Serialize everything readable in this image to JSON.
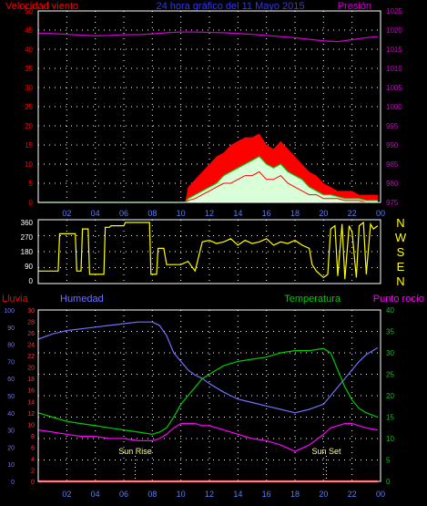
{
  "header": {
    "wind_label": "Velocidad viento",
    "title": "24 hora gráfico del 11 Mayo 2015",
    "pressure_label": "Presión"
  },
  "colors": {
    "wind": "#ff0000",
    "gust_fill": "#ff0000",
    "wind_avg": "#00cc00",
    "wind_fill": "#d8ffd8",
    "pressure": "#cc00cc",
    "direction": "#ffff00",
    "humidity": "#7070ff",
    "temperature": "#00cc00",
    "dewpoint": "#ff00ff",
    "rain": "#ff0000",
    "grid": "#ffffff",
    "frame": "#ffffff",
    "title": "#3333ff",
    "tick_x": "#5a7dff"
  },
  "compass": [
    "N",
    "W",
    "S",
    "E",
    "N"
  ],
  "sun": {
    "rise_label": "Sun Rise",
    "rise_hour": 6.8,
    "set_label": "Sun Set",
    "set_hour": 20.2
  },
  "chart_data": [
    {
      "type": "line",
      "name": "wind-pressure",
      "x_ticks": [
        "02",
        "04",
        "06",
        "08",
        "10",
        "12",
        "14",
        "16",
        "18",
        "20",
        "22",
        "00"
      ],
      "xlim": [
        0,
        24
      ],
      "y_left_ticks": [
        "0",
        "5",
        "10",
        "15",
        "20",
        "25",
        "30",
        "35",
        "40",
        "45",
        "50"
      ],
      "ylim_left": [
        0,
        50
      ],
      "y_right_ticks": [
        "975",
        "980",
        "985",
        "990",
        "995",
        "1000",
        "1005",
        "1010",
        "1015",
        "1020",
        "1025"
      ],
      "ylim_right": [
        975,
        1025
      ],
      "grid": true,
      "series": [
        {
          "key": "pressure",
          "axis": "right",
          "x": [
            0,
            1,
            2,
            3,
            4,
            5,
            6,
            7,
            8,
            9,
            10,
            11,
            12,
            13,
            14,
            15,
            16,
            17,
            18,
            19,
            20,
            21,
            22,
            23,
            23.8
          ],
          "values": [
            1019.2,
            1019.1,
            1018.9,
            1018.7,
            1018.5,
            1018.6,
            1018.8,
            1018.8,
            1019.0,
            1019.3,
            1019.5,
            1019.5,
            1019.4,
            1019.3,
            1019.1,
            1018.9,
            1018.6,
            1018.3,
            1018.0,
            1017.6,
            1017.2,
            1017.0,
            1017.5,
            1018.0,
            1018.3
          ]
        },
        {
          "key": "gust",
          "axis": "left",
          "x": [
            0,
            10.3,
            10.5,
            11,
            11.5,
            12,
            12.5,
            13,
            13.5,
            14,
            14.5,
            15,
            15.5,
            16,
            16.5,
            17,
            17.5,
            18,
            18.5,
            19,
            19.5,
            20,
            20.5,
            21,
            21.5,
            22,
            22.5,
            23,
            23.8
          ],
          "values": [
            0,
            0,
            4,
            6,
            8,
            10,
            12,
            13,
            15,
            16,
            17,
            17,
            18,
            15,
            14,
            16,
            14,
            12,
            10,
            8,
            7,
            5,
            4,
            3,
            3,
            3,
            2,
            2,
            2
          ]
        },
        {
          "key": "wind_avg",
          "axis": "left",
          "x": [
            0,
            10.3,
            10.5,
            11,
            11.5,
            12,
            12.5,
            13,
            13.5,
            14,
            14.5,
            15,
            15.5,
            16,
            16.5,
            17,
            17.5,
            18,
            18.5,
            19,
            19.5,
            20,
            20.5,
            21,
            21.5,
            22,
            22.5,
            23,
            23.8
          ],
          "values": [
            0,
            0,
            1,
            2,
            3,
            4,
            5,
            7,
            8,
            9,
            10,
            11,
            12,
            10,
            9,
            10,
            8,
            7,
            6,
            4,
            3,
            2,
            2,
            1.5,
            1,
            1,
            1,
            0.5,
            0.5
          ]
        },
        {
          "key": "wind",
          "axis": "left",
          "x": [
            0,
            10.3,
            10.5,
            11,
            11.5,
            12,
            12.5,
            13,
            13.5,
            14,
            14.5,
            15,
            15.5,
            16,
            16.5,
            17,
            17.5,
            18,
            18.5,
            19,
            19.5,
            20,
            20.5,
            21,
            21.5,
            22,
            22.5,
            23,
            23.8
          ],
          "values": [
            0,
            0,
            0.5,
            1,
            2,
            3,
            4,
            5,
            5,
            6,
            7,
            7,
            8,
            6,
            6,
            7,
            5,
            4,
            3,
            2,
            2,
            1,
            1,
            1,
            0.5,
            0.5,
            0.5,
            0,
            0
          ]
        }
      ]
    },
    {
      "type": "line",
      "name": "wind-direction",
      "x_ticks": [],
      "xlim": [
        0,
        24
      ],
      "y_left_ticks": [
        "0",
        "90",
        "180",
        "270",
        "360"
      ],
      "ylim_left": [
        0,
        360
      ],
      "grid": true,
      "series": [
        {
          "key": "direction",
          "axis": "left",
          "x": [
            0,
            1.4,
            1.5,
            2.6,
            2.7,
            3.0,
            3.1,
            3.5,
            3.6,
            4.2,
            4.3,
            4.6,
            4.7,
            5.0,
            5.1,
            6.0,
            6.1,
            7.8,
            7.9,
            8.3,
            8.4,
            8.8,
            9.0,
            9.3,
            9.5,
            10,
            10.5,
            11,
            11.5,
            12,
            12.5,
            13,
            13.5,
            14,
            14.5,
            15,
            15.5,
            16,
            16.5,
            17,
            17.5,
            18,
            18.5,
            19,
            19.2,
            19.5,
            20,
            20.3,
            20.5,
            20.8,
            21,
            21.3,
            21.5,
            21.8,
            22,
            22.3,
            22.5,
            22.8,
            23,
            23.3,
            23.5,
            23.8
          ],
          "values": [
            60,
            60,
            290,
            290,
            60,
            60,
            320,
            320,
            40,
            40,
            40,
            40,
            330,
            330,
            340,
            340,
            360,
            360,
            40,
            40,
            200,
            200,
            100,
            100,
            100,
            100,
            120,
            60,
            240,
            250,
            230,
            240,
            260,
            220,
            250,
            230,
            240,
            260,
            220,
            240,
            230,
            250,
            220,
            200,
            100,
            60,
            20,
            40,
            320,
            340,
            30,
            350,
            10,
            340,
            300,
            20,
            340,
            360,
            40,
            350,
            320,
            340
          ]
        }
      ]
    },
    {
      "type": "line",
      "name": "rain-humidity-temperature",
      "header": {
        "rain_label": "Lluvia",
        "humidity_label": "Humedad",
        "temperature_label": "Temperatura",
        "dewpoint_label": "Punto rocío"
      },
      "x_ticks": [
        "02",
        "04",
        "06",
        "08",
        "10",
        "12",
        "14",
        "16",
        "18",
        "20",
        "22",
        "00"
      ],
      "xlim": [
        0,
        24
      ],
      "y_rain_ticks": [
        "0",
        "2",
        "4",
        "6",
        "8",
        "10",
        "12",
        "14",
        "16",
        "18",
        "20",
        "22",
        "24",
        "26",
        "28",
        "30"
      ],
      "ylim_rain": [
        0,
        30
      ],
      "y_humidity_ticks": [
        "0",
        "10",
        "20",
        "30",
        "40",
        "50",
        "60",
        "70",
        "80",
        "90",
        "100"
      ],
      "ylim_humidity": [
        0,
        100
      ],
      "y_right_ticks": [
        "0",
        "5",
        "10",
        "15",
        "20",
        "25",
        "30",
        "35",
        "40"
      ],
      "ylim_right": [
        0,
        40
      ],
      "grid": true,
      "series": [
        {
          "key": "humidity",
          "axis": "humidity",
          "x": [
            0,
            1,
            2,
            3,
            4,
            5,
            6,
            7,
            8,
            8.5,
            9,
            9.5,
            10,
            10.5,
            11,
            11.5,
            12,
            13,
            14,
            15,
            16,
            17,
            18,
            19,
            20,
            20.5,
            21,
            21.5,
            22,
            22.5,
            23,
            23.8
          ],
          "values": [
            83,
            86,
            88,
            89,
            90,
            91,
            92,
            93,
            93,
            91,
            85,
            75,
            70,
            65,
            62,
            60,
            57,
            52,
            48,
            46,
            44,
            42,
            40,
            42,
            45,
            50,
            55,
            60,
            65,
            70,
            74,
            78
          ]
        },
        {
          "key": "temperature",
          "axis": "right",
          "x": [
            0,
            1,
            2,
            3,
            4,
            5,
            6,
            7,
            8,
            8.5,
            9,
            9.5,
            10,
            10.5,
            11,
            11.5,
            12,
            13,
            14,
            15,
            16,
            17,
            18,
            19,
            20,
            20.5,
            21,
            21.5,
            22,
            22.5,
            23,
            23.8
          ],
          "values": [
            16,
            15,
            14,
            13.5,
            13,
            12.5,
            12,
            11.5,
            11,
            11.5,
            12.5,
            15,
            18,
            20,
            22,
            24,
            25,
            27,
            28,
            28.5,
            29,
            30,
            30.5,
            30.5,
            31,
            30,
            26,
            22,
            19,
            17,
            16,
            15
          ]
        },
        {
          "key": "dewpoint",
          "axis": "right",
          "x": [
            0,
            1,
            2,
            3,
            4,
            5,
            6,
            7,
            8,
            8.5,
            9,
            9.5,
            10,
            10.5,
            11,
            11.5,
            12,
            13,
            14,
            15,
            16,
            17,
            18,
            19,
            20,
            20.5,
            21,
            21.5,
            22,
            22.5,
            23,
            23.8
          ],
          "values": [
            12,
            11.5,
            11,
            10.5,
            10.5,
            10,
            10,
            9.5,
            9.5,
            10,
            11,
            12.5,
            13.5,
            13.5,
            13.5,
            13,
            13,
            12,
            11,
            10,
            9.5,
            8.5,
            7,
            8.5,
            11,
            12.5,
            13,
            13.5,
            13.5,
            13,
            12.5,
            12
          ]
        },
        {
          "key": "rain",
          "axis": "rain",
          "x": [
            0,
            23.8
          ],
          "values": [
            0,
            0
          ]
        }
      ]
    }
  ]
}
